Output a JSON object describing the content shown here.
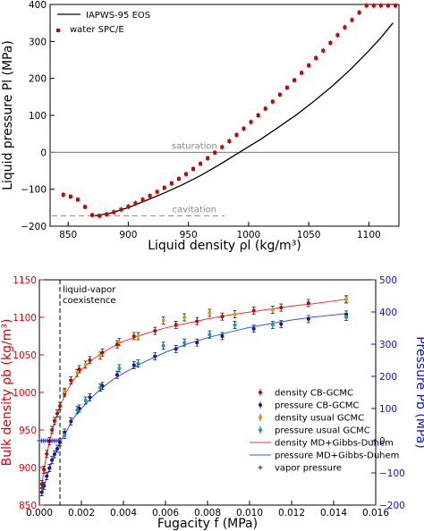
{
  "chart_data": [
    {
      "type": "line",
      "xlabel": "Liquid density ρl (kg/m³)",
      "ylabel": "Liquid pressure Pl (MPa)",
      "xlim": [
        835,
        1125
      ],
      "ylim": [
        -200,
        400
      ],
      "xticks": [
        "850",
        "900",
        "950",
        "1000",
        "1050",
        "1100"
      ],
      "yticks": [
        "−200",
        "−100",
        "0",
        "100",
        "200",
        "300",
        "400"
      ],
      "legend_position": "top-left",
      "annotations": {
        "saturation": "saturation",
        "cavitation": "cavitation"
      },
      "reference_lines": {
        "saturation_y": 0,
        "cavitation_y": -172,
        "cavitation_x_range": [
          835,
          980
        ]
      },
      "series": [
        {
          "name": "IAPWS-95 EOS",
          "color": "#000000",
          "x": [
            872,
            885,
            900,
            915,
            930,
            945,
            960,
            975,
            990,
            1000,
            1010,
            1025,
            1040,
            1055,
            1070,
            1085,
            1100,
            1110,
            1120
          ],
          "y": [
            -172,
            -165,
            -150,
            -130,
            -110,
            -88,
            -63,
            -35,
            -5,
            15,
            35,
            68,
            102,
            140,
            180,
            225,
            275,
            310,
            350
          ]
        },
        {
          "name": "water SPC/E",
          "color": "#cc0000",
          "x": [
            846,
            852,
            858,
            864,
            870,
            876,
            882,
            888,
            894,
            900,
            906,
            912,
            918,
            924,
            930,
            936,
            942,
            948,
            954,
            960,
            966,
            972,
            978,
            984,
            990,
            996,
            1002,
            1008,
            1014,
            1020,
            1026,
            1032,
            1038,
            1044,
            1050,
            1056,
            1062,
            1068,
            1074,
            1080,
            1086,
            1092,
            1098,
            1104,
            1110,
            1116,
            1122
          ],
          "y": [
            -115,
            -120,
            -128,
            -148,
            -170,
            -172,
            -168,
            -162,
            -155,
            -147,
            -138,
            -128,
            -118,
            -107,
            -96,
            -84,
            -72,
            -59,
            -45,
            -31,
            -16,
            -1,
            14,
            30,
            47,
            64,
            82,
            100,
            118,
            137,
            156,
            175,
            195,
            215,
            235,
            255,
            275,
            296,
            317,
            338,
            358,
            378,
            397,
            397,
            397,
            397,
            397
          ]
        }
      ]
    },
    {
      "type": "scatter",
      "xlabel": "Fugacity f (MPa)",
      "ylabel_left": "Bulk density ρb (kg/m³)",
      "ylabel_right": "Pressure Pb (MPa)",
      "xlim": [
        0,
        0.016
      ],
      "ylim_left": [
        850,
        1150
      ],
      "ylim_right": [
        -200,
        500
      ],
      "xticks": [
        "0.000",
        "0.002",
        "0.004",
        "0.006",
        "0.008",
        "0.010",
        "0.012",
        "0.014",
        "0.016"
      ],
      "yticks_left": [
        "850",
        "900",
        "950",
        "1000",
        "1050",
        "1100",
        "1150"
      ],
      "yticks_right": [
        "−200",
        "−100",
        "0",
        "100",
        "200",
        "300",
        "400",
        "500"
      ],
      "annotation": [
        "liquid-vapor",
        "coexistence"
      ],
      "coexistence_f": 0.00098,
      "legend_position": "bottom-right",
      "colors": {
        "left_axis": "#e8000b",
        "right_axis": "#1010c8"
      },
      "series": [
        {
          "name": "density CB-GCMC",
          "axis": "left",
          "color": "#cc0000",
          "marker": "errorbar",
          "x": [
            0.00012,
            0.00022,
            0.00035,
            0.00048,
            0.0006,
            0.00072,
            0.00085,
            0.00098,
            0.0012,
            0.0015,
            0.0019,
            0.0024,
            0.003,
            0.0037,
            0.0045,
            0.0055,
            0.0065,
            0.0075,
            0.0087,
            0.0102,
            0.0115,
            0.0128,
            0.0146
          ],
          "y": [
            878,
            897,
            918,
            935,
            950,
            962,
            972,
            982,
            999,
            1016,
            1031,
            1043,
            1053,
            1064,
            1075,
            1082,
            1090,
            1095,
            1101,
            1109,
            1113,
            1119,
            1124
          ]
        },
        {
          "name": "pressure CB-GCMC",
          "axis": "right",
          "color": "#1010c8",
          "marker": "errorbar",
          "x": [
            0.00012,
            0.00022,
            0.00035,
            0.00048,
            0.0006,
            0.00072,
            0.00085,
            0.00098,
            0.0012,
            0.0015,
            0.0019,
            0.0024,
            0.003,
            0.0037,
            0.0045,
            0.0055,
            0.0065,
            0.0075,
            0.0087,
            0.0102,
            0.0115,
            0.0128,
            0.0146
          ],
          "y": [
            -160,
            -140,
            -110,
            -85,
            -60,
            -42,
            -25,
            -5,
            25,
            60,
            100,
            135,
            170,
            205,
            235,
            262,
            285,
            305,
            325,
            348,
            362,
            378,
            392
          ]
        },
        {
          "name": "density usual GCMC",
          "axis": "left",
          "color": "#d4a000",
          "marker": "errorbar",
          "x": [
            0.0012,
            0.0018,
            0.0022,
            0.0029,
            0.0038,
            0.0047,
            0.0059,
            0.0069,
            0.0081,
            0.0093,
            0.0111,
            0.0146
          ],
          "y": [
            1001,
            1026,
            1037,
            1049,
            1067,
            1075,
            1096,
            1100,
            1106,
            1104,
            1110,
            1124
          ]
        },
        {
          "name": "pressure usual GCMC",
          "axis": "right",
          "color": "#00a8b0",
          "marker": "errorbar",
          "x": [
            0.0012,
            0.0018,
            0.0022,
            0.0029,
            0.0038,
            0.0047,
            0.0059,
            0.0069,
            0.0081,
            0.0093,
            0.0111,
            0.0146
          ],
          "y": [
            18,
            95,
            125,
            165,
            225,
            240,
            295,
            305,
            330,
            360,
            360,
            385
          ]
        },
        {
          "name": "density MD+Gibbs-Duhem",
          "axis": "left",
          "color": "#ee3333",
          "marker": "line",
          "x": [
            0.0001,
            0.0002,
            0.0003,
            0.0005,
            0.0007,
            0.00098,
            0.0013,
            0.0016,
            0.002,
            0.0025,
            0.003,
            0.0035,
            0.004,
            0.005,
            0.006,
            0.007,
            0.008,
            0.009,
            0.01,
            0.011,
            0.012,
            0.013,
            0.0146
          ],
          "y": [
            873,
            893,
            910,
            937,
            957,
            982,
            1001,
            1016,
            1030,
            1043,
            1053,
            1061,
            1068,
            1078,
            1086,
            1092,
            1098,
            1103,
            1107,
            1111,
            1115,
            1118,
            1124
          ]
        },
        {
          "name": "pressure MD+Gibbs-Duhem",
          "axis": "right",
          "color": "#3355ee",
          "marker": "line",
          "x": [
            0.0001,
            0.0002,
            0.0003,
            0.0005,
            0.0007,
            0.00098,
            0.0013,
            0.0016,
            0.002,
            0.0025,
            0.003,
            0.0035,
            0.004,
            0.005,
            0.006,
            0.007,
            0.008,
            0.009,
            0.01,
            0.011,
            0.012,
            0.013,
            0.0146
          ],
          "y": [
            -170,
            -148,
            -125,
            -85,
            -50,
            -5,
            30,
            68,
            100,
            135,
            165,
            190,
            210,
            245,
            275,
            300,
            320,
            337,
            352,
            364,
            375,
            384,
            395
          ]
        },
        {
          "name": "vapor pressure",
          "axis": "right",
          "color": "#1010c8",
          "marker": "plus",
          "x": [
            0.0,
            0.0001,
            0.0002,
            0.0003,
            0.0004,
            0.0005,
            0.0006,
            0.0007,
            0.0008,
            0.0009
          ],
          "y": [
            0,
            0,
            0,
            0,
            0,
            0,
            0,
            0,
            0,
            0
          ]
        }
      ]
    }
  ]
}
